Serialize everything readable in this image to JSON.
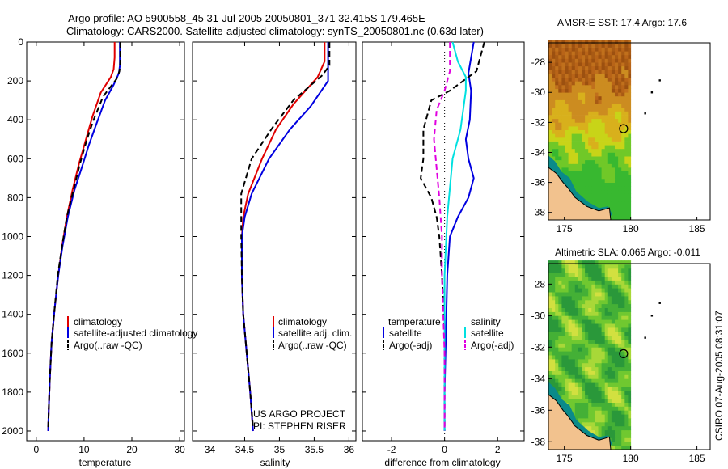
{
  "header": {
    "title_line1": "Argo profile: AO 5900558_45 31-Jul-2005 20050801_371 32.415S 179.465E",
    "title_line2": "Climatology: CARS2000. Satellite-adjusted climatology: synTS_20050801.nc (0.63d later)"
  },
  "footer_text": {
    "project": "US ARGO PROJECT",
    "pi": "PI: STEPHEN RISER",
    "side_stamp": "CSIRO 07-Aug-2005 08:31:07"
  },
  "colors": {
    "climatology": "#e00000",
    "satellite": "#0000e0",
    "argo": "#000000",
    "sal_satellite": "#00e0e0",
    "sal_argo": "#e000e0"
  },
  "chart_data": [
    {
      "type": "line",
      "id": "temperature",
      "xlabel": "temperature",
      "xlim": [
        -2,
        31
      ],
      "ylim": [
        0,
        2050
      ],
      "y_reversed": true,
      "xticks": [
        0,
        10,
        20,
        30
      ],
      "yticks": [
        0,
        200,
        400,
        600,
        800,
        1000,
        1200,
        1400,
        1600,
        1800,
        2000
      ],
      "legend": [
        "climatology",
        "satellite-adjusted climatology",
        "Argo(..raw -QC)"
      ],
      "series": [
        {
          "name": "climatology",
          "color": "#e00000",
          "dash": false,
          "points": [
            [
              16.4,
              0
            ],
            [
              16.4,
              80
            ],
            [
              16.2,
              140
            ],
            [
              15.6,
              180
            ],
            [
              13.5,
              260
            ],
            [
              11.8,
              380
            ],
            [
              10.4,
              500
            ],
            [
              9.0,
              620
            ],
            [
              7.6,
              760
            ],
            [
              6.4,
              900
            ],
            [
              5.4,
              1050
            ],
            [
              4.6,
              1200
            ],
            [
              3.8,
              1380
            ],
            [
              3.2,
              1550
            ],
            [
              2.8,
              1750
            ],
            [
              2.6,
              1900
            ],
            [
              2.5,
              2000
            ]
          ]
        },
        {
          "name": "satellite-adjusted climatology",
          "color": "#0000e0",
          "dash": false,
          "points": [
            [
              17.5,
              0
            ],
            [
              17.5,
              120
            ],
            [
              17.3,
              160
            ],
            [
              16.2,
              220
            ],
            [
              14.4,
              300
            ],
            [
              12.6,
              420
            ],
            [
              11.0,
              530
            ],
            [
              9.6,
              640
            ],
            [
              8.0,
              760
            ],
            [
              6.6,
              900
            ],
            [
              5.5,
              1050
            ],
            [
              4.6,
              1200
            ],
            [
              3.8,
              1380
            ],
            [
              3.2,
              1550
            ],
            [
              2.8,
              1750
            ],
            [
              2.6,
              1900
            ],
            [
              2.5,
              2000
            ]
          ]
        },
        {
          "name": "Argo(..raw -QC)",
          "color": "#000000",
          "dash": true,
          "points": [
            [
              17.6,
              0
            ],
            [
              17.6,
              100
            ],
            [
              17.4,
              150
            ],
            [
              16.8,
              190
            ],
            [
              14.0,
              280
            ],
            [
              12.0,
              400
            ],
            [
              10.6,
              500
            ],
            [
              9.2,
              620
            ],
            [
              7.8,
              760
            ],
            [
              6.4,
              900
            ],
            [
              5.4,
              1050
            ],
            [
              4.5,
              1200
            ],
            [
              3.8,
              1380
            ],
            [
              3.2,
              1550
            ],
            [
              2.8,
              1750
            ],
            [
              2.6,
              1900
            ],
            [
              2.5,
              1980
            ]
          ]
        }
      ]
    },
    {
      "type": "line",
      "id": "salinity",
      "xlabel": "salinity",
      "xlim": [
        33.75,
        36.1
      ],
      "ylim": [
        0,
        2050
      ],
      "y_reversed": true,
      "xticks": [
        34,
        34.5,
        35,
        35.5,
        36
      ],
      "legend": [
        "climatology",
        "satellite adj. clim.",
        "Argo(..raw -QC)"
      ],
      "series": [
        {
          "name": "climatology",
          "color": "#e00000",
          "dash": false,
          "points": [
            [
              35.65,
              0
            ],
            [
              35.65,
              100
            ],
            [
              35.55,
              180
            ],
            [
              35.2,
              320
            ],
            [
              34.95,
              450
            ],
            [
              34.75,
              600
            ],
            [
              34.55,
              780
            ],
            [
              34.48,
              900
            ],
            [
              34.46,
              1000
            ],
            [
              34.46,
              1200
            ],
            [
              34.48,
              1400
            ],
            [
              34.53,
              1600
            ],
            [
              34.58,
              1800
            ],
            [
              34.62,
              2000
            ]
          ]
        },
        {
          "name": "satellite adj. clim.",
          "color": "#0000e0",
          "dash": false,
          "points": [
            [
              35.7,
              0
            ],
            [
              35.7,
              100
            ],
            [
              35.7,
              200
            ],
            [
              35.45,
              330
            ],
            [
              35.15,
              450
            ],
            [
              34.85,
              600
            ],
            [
              34.6,
              780
            ],
            [
              34.5,
              900
            ],
            [
              34.46,
              1000
            ],
            [
              34.46,
              1200
            ],
            [
              34.48,
              1400
            ],
            [
              34.53,
              1600
            ],
            [
              34.58,
              1800
            ],
            [
              34.62,
              2000
            ]
          ]
        },
        {
          "name": "Argo(..raw -QC)",
          "color": "#000000",
          "dash": true,
          "points": [
            [
              35.72,
              0
            ],
            [
              35.72,
              120
            ],
            [
              35.62,
              170
            ],
            [
              35.2,
              300
            ],
            [
              34.9,
              440
            ],
            [
              34.6,
              600
            ],
            [
              34.45,
              780
            ],
            [
              34.45,
              900
            ],
            [
              34.45,
              1000
            ],
            [
              34.46,
              1200
            ],
            [
              34.48,
              1400
            ],
            [
              34.53,
              1600
            ],
            [
              34.58,
              1800
            ],
            [
              34.62,
              1980
            ]
          ]
        }
      ]
    },
    {
      "type": "line",
      "id": "difference",
      "xlabel": "difference from climatology",
      "xlim": [
        -3.1,
        3.0
      ],
      "ylim": [
        0,
        2050
      ],
      "y_reversed": true,
      "xticks": [
        -2,
        0,
        2
      ],
      "legend_groups": {
        "temperature": [
          "satellite",
          "Argo(-adj)"
        ],
        "salinity": [
          "satellite",
          "Argo(-adj)"
        ]
      },
      "series": [
        {
          "name": "temperature satellite",
          "color": "#0000e0",
          "dash": false,
          "points": [
            [
              1.1,
              0
            ],
            [
              1.0,
              80
            ],
            [
              0.9,
              160
            ],
            [
              1.0,
              250
            ],
            [
              0.95,
              400
            ],
            [
              0.8,
              500
            ],
            [
              0.9,
              600
            ],
            [
              1.1,
              700
            ],
            [
              0.9,
              800
            ],
            [
              0.5,
              900
            ],
            [
              0.2,
              1000
            ],
            [
              0.1,
              1200
            ],
            [
              0.05,
              1500
            ],
            [
              0.0,
              1800
            ],
            [
              0.0,
              2000
            ]
          ]
        },
        {
          "name": "temperature Argo(-adj)",
          "color": "#000000",
          "dash": true,
          "points": [
            [
              1.5,
              0
            ],
            [
              1.2,
              150
            ],
            [
              0.2,
              250
            ],
            [
              -0.5,
              300
            ],
            [
              -0.8,
              450
            ],
            [
              -0.8,
              600
            ],
            [
              -0.9,
              700
            ],
            [
              -0.5,
              800
            ],
            [
              -0.3,
              900
            ],
            [
              -0.2,
              1000
            ],
            [
              -0.1,
              1200
            ],
            [
              0.0,
              1500
            ],
            [
              0.0,
              1800
            ],
            [
              0.0,
              2000
            ]
          ]
        },
        {
          "name": "salinity satellite",
          "color": "#00e0e0",
          "dash": false,
          "points": [
            [
              0.3,
              0
            ],
            [
              0.5,
              100
            ],
            [
              0.8,
              180
            ],
            [
              0.8,
              250
            ],
            [
              0.7,
              350
            ],
            [
              0.6,
              450
            ],
            [
              0.3,
              600
            ],
            [
              0.1,
              900
            ],
            [
              0.0,
              1200
            ],
            [
              0.0,
              1600
            ],
            [
              0.0,
              2000
            ]
          ]
        },
        {
          "name": "salinity Argo(-adj)",
          "color": "#e000e0",
          "dash": true,
          "points": [
            [
              0.2,
              0
            ],
            [
              0.2,
              150
            ],
            [
              0.0,
              250
            ],
            [
              -0.3,
              350
            ],
            [
              -0.4,
              500
            ],
            [
              -0.3,
              650
            ],
            [
              -0.2,
              800
            ],
            [
              -0.1,
              1000
            ],
            [
              -0.1,
              1200
            ],
            [
              -0.05,
              1400
            ],
            [
              0.0,
              1600
            ],
            [
              0.0,
              2000
            ]
          ]
        }
      ]
    },
    {
      "type": "heatmap",
      "id": "sst-map",
      "title": "AMSR-E SST: 17.4 Argo: 17.6",
      "xlim": [
        173.8,
        186.0
      ],
      "ylim": [
        -38.5,
        -26.7
      ],
      "xticks": [
        175,
        180,
        185
      ],
      "yticks": [
        -28,
        -30,
        -32,
        -34,
        -36,
        -38
      ],
      "float_position": [
        179.465,
        -32.415
      ],
      "trajectory_points": [
        [
          182.2,
          -29.2
        ],
        [
          181.6,
          -30.0
        ],
        [
          181.1,
          -31.4
        ]
      ]
    },
    {
      "type": "heatmap",
      "id": "sla-map",
      "title": "Altimetric SLA: 0.065 Argo: -0.011",
      "xlim": [
        173.8,
        186.0
      ],
      "ylim": [
        -38.5,
        -26.7
      ],
      "xticks": [
        175,
        180,
        185
      ],
      "yticks": [
        -28,
        -30,
        -32,
        -34,
        -36,
        -38
      ],
      "float_position": [
        179.465,
        -32.415
      ],
      "trajectory_points": [
        [
          182.2,
          -29.2
        ],
        [
          181.6,
          -30.0
        ],
        [
          181.1,
          -31.4
        ]
      ]
    }
  ]
}
